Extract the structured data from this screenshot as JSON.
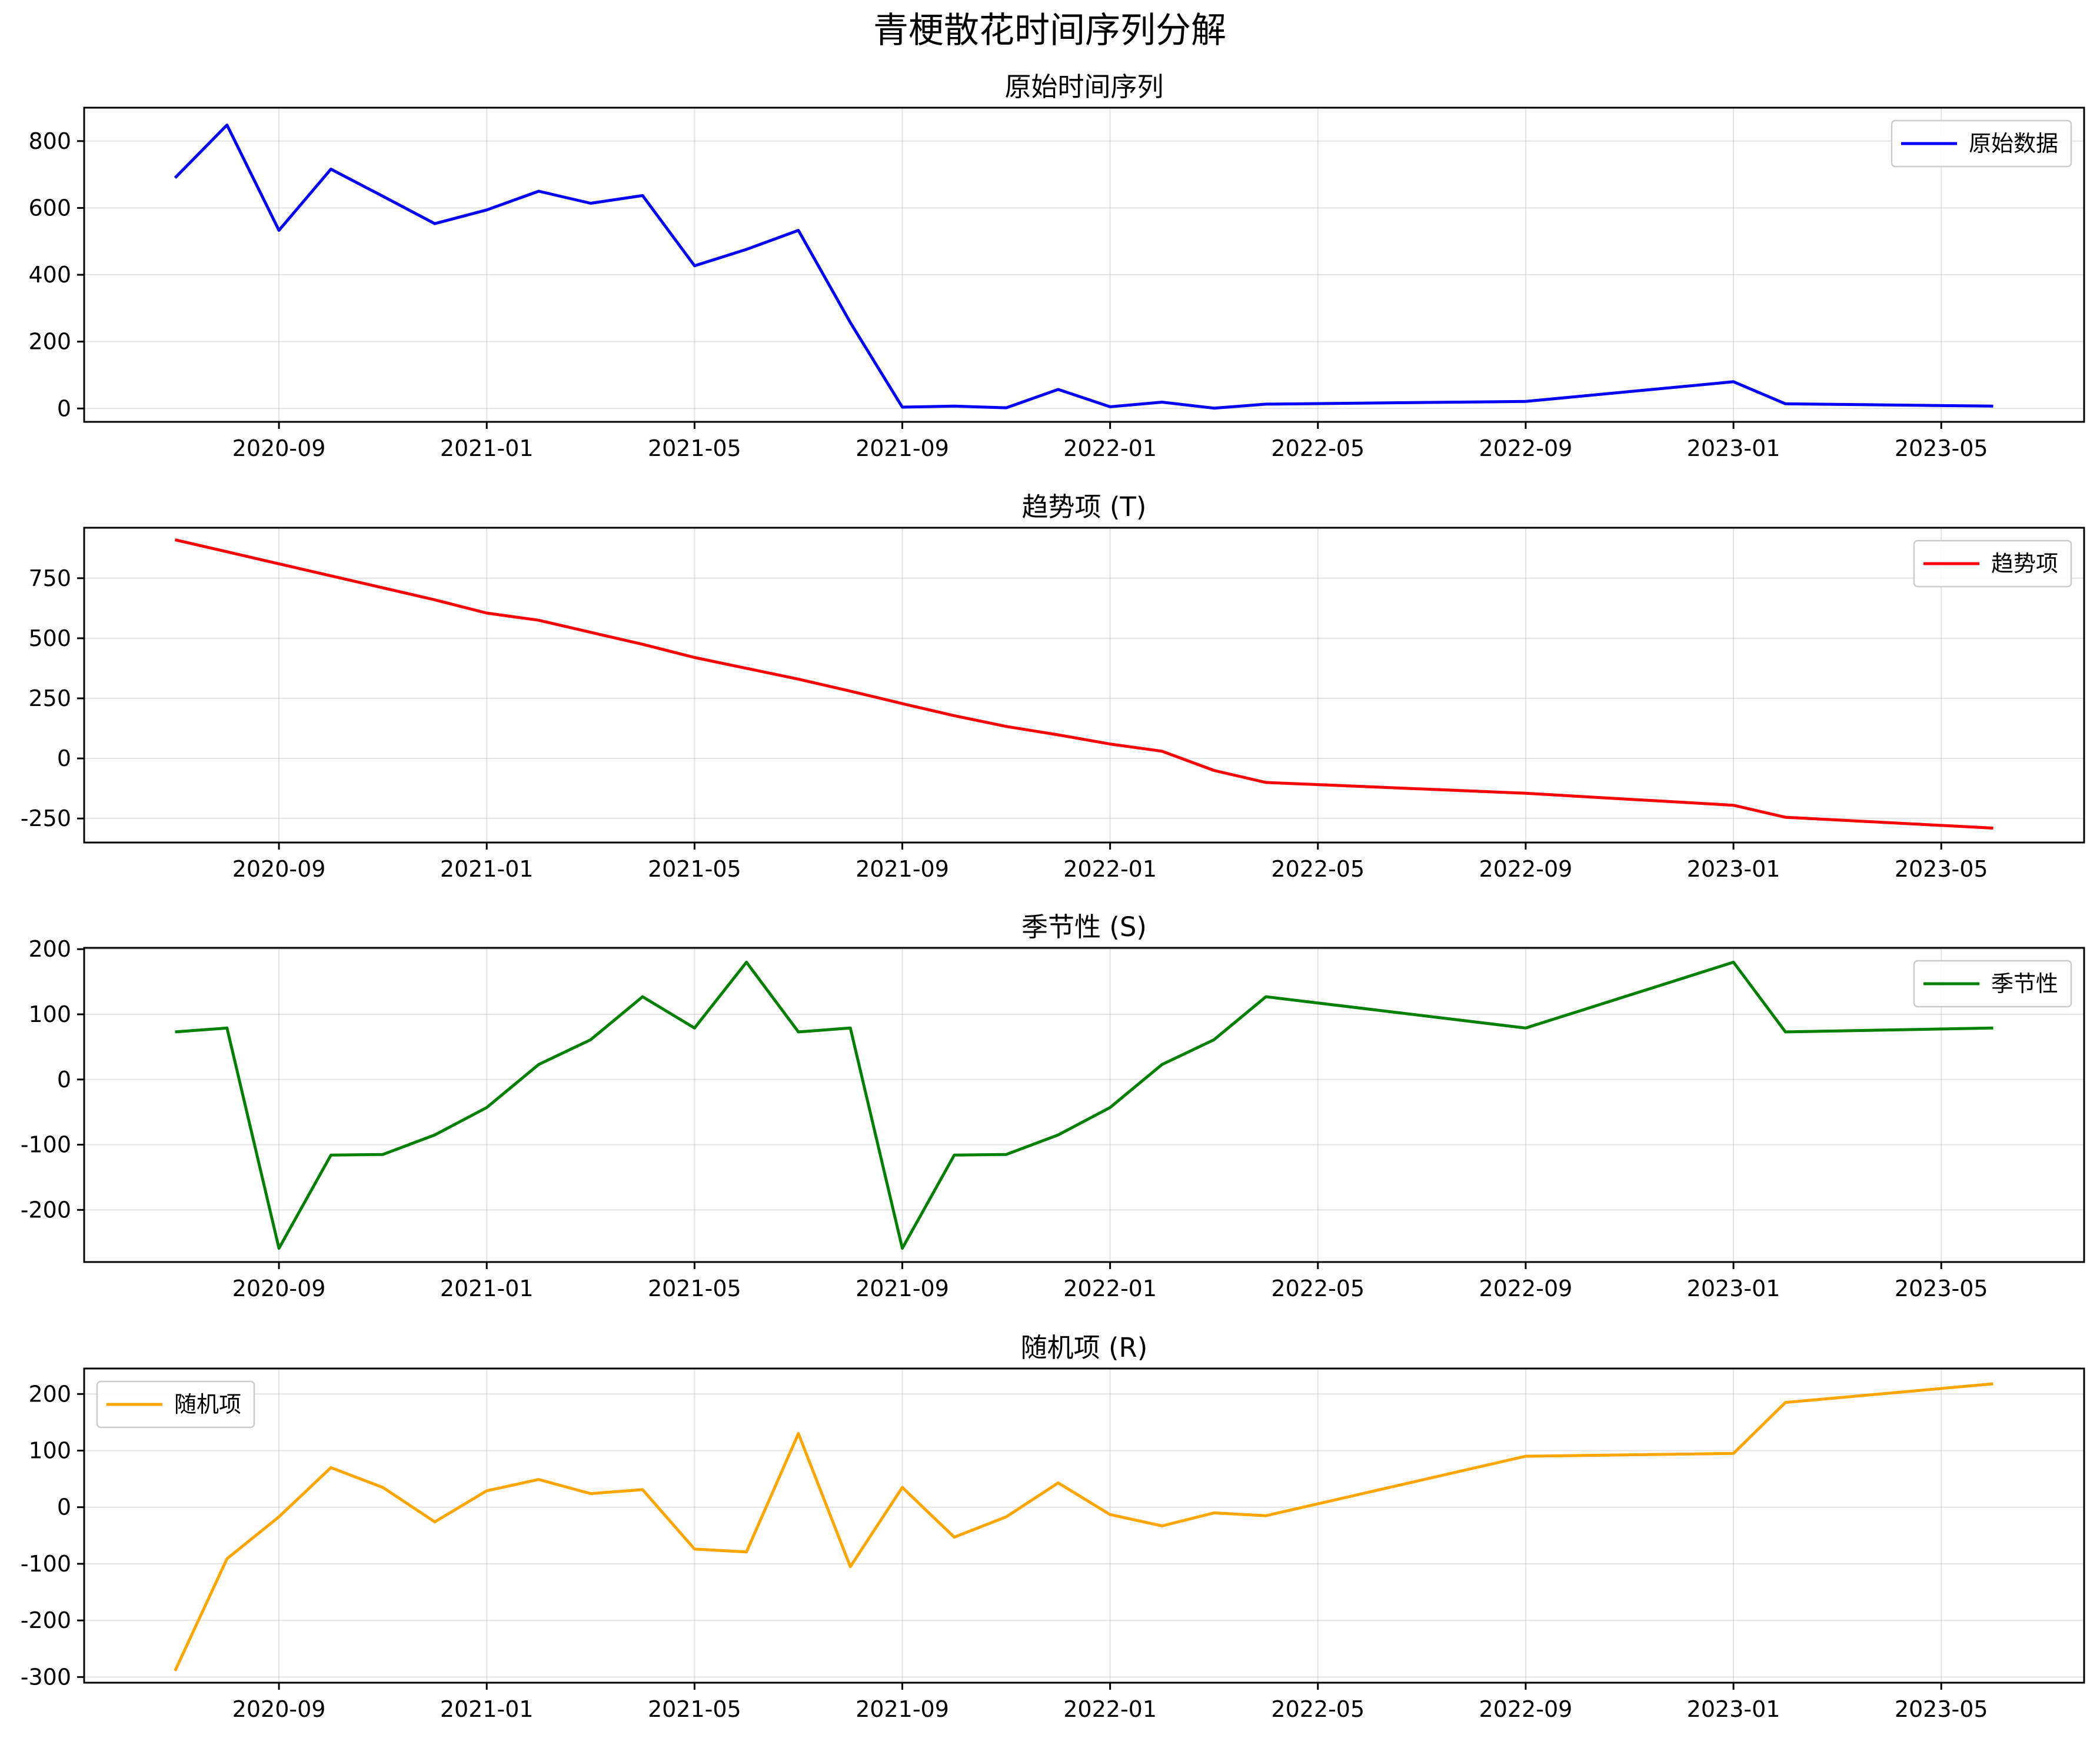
{
  "chart_data": {
    "type": "line",
    "title": "青梗散花时间序列分解",
    "x": [
      "2020-07",
      "2020-08",
      "2020-09",
      "2020-10",
      "2020-11",
      "2020-12",
      "2021-01",
      "2021-02",
      "2021-03",
      "2021-04",
      "2021-05",
      "2021-06",
      "2021-07",
      "2021-08",
      "2021-09",
      "2021-10",
      "2021-11",
      "2021-12",
      "2022-01",
      "2022-02",
      "2022-03",
      "2022-04",
      "2022-09",
      "2023-01",
      "2023-02",
      "2023-06"
    ],
    "x_ticks": [
      "2020-09",
      "2021-01",
      "2021-05",
      "2021-09",
      "2022-01",
      "2022-05",
      "2022-09",
      "2023-01",
      "2023-05"
    ],
    "grid": true,
    "panels": [
      {
        "title": "原始时间序列",
        "legend": "原始数据",
        "legend_position": "upper-right",
        "color": "#0000ff",
        "ylim": [
          -40,
          900
        ],
        "yticks": [
          0,
          200,
          400,
          600,
          800
        ],
        "values": [
          690,
          848,
          533,
          716,
          635,
          553,
          594,
          650,
          614,
          637,
          427,
          476,
          533,
          257,
          4,
          7,
          2,
          57,
          5,
          19,
          1,
          13,
          21,
          80,
          14,
          7
        ]
      },
      {
        "title": "趋势项 (T)",
        "legend": "趋势项",
        "legend_position": "upper-right",
        "color": "#ff0000",
        "ylim": [
          -350,
          960
        ],
        "yticks": [
          -250,
          0,
          250,
          500,
          750
        ],
        "values": [
          910,
          860,
          810,
          760,
          710,
          660,
          605,
          575,
          525,
          475,
          420,
          375,
          330,
          280,
          228,
          178,
          133,
          98,
          60,
          30,
          -50,
          -100,
          -145,
          -195,
          -245,
          -290
        ]
      },
      {
        "title": "季节性 (S)",
        "legend": "季节性",
        "legend_position": "upper-right",
        "color": "#008000",
        "ylim": [
          -280,
          202
        ],
        "yticks": [
          -200,
          -100,
          0,
          100,
          200
        ],
        "values": [
          73,
          79,
          -259,
          -116,
          -115,
          -85,
          -43,
          23,
          61,
          127,
          79,
          180,
          73,
          79,
          -259,
          -116,
          -115,
          -85,
          -43,
          23,
          61,
          127,
          79,
          180,
          73,
          79
        ]
      },
      {
        "title": "随机项 (R)",
        "legend": "随机项",
        "legend_position": "upper-left",
        "color": "#ffa500",
        "ylim": [
          -310,
          245
        ],
        "yticks": [
          -300,
          -200,
          -100,
          0,
          100,
          200
        ],
        "values": [
          -289,
          -91,
          -17,
          70,
          35,
          -26,
          29,
          49,
          24,
          31,
          -74,
          -79,
          130,
          -105,
          35,
          -53,
          -17,
          43,
          -13,
          -33,
          -10,
          -15,
          90,
          95,
          185,
          218
        ]
      }
    ]
  }
}
